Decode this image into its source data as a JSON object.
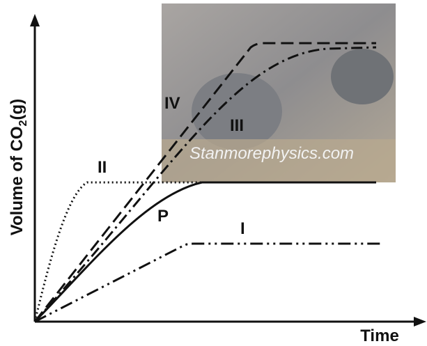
{
  "y_axis_label": {
    "main": "Volume of CO",
    "subscript": "2",
    "suffix": "(g)"
  },
  "x_axis_label": "Time",
  "curve_labels": [
    "I",
    "II",
    "III",
    "IV",
    "P"
  ],
  "watermark": "Stanmorephysics.com"
}
